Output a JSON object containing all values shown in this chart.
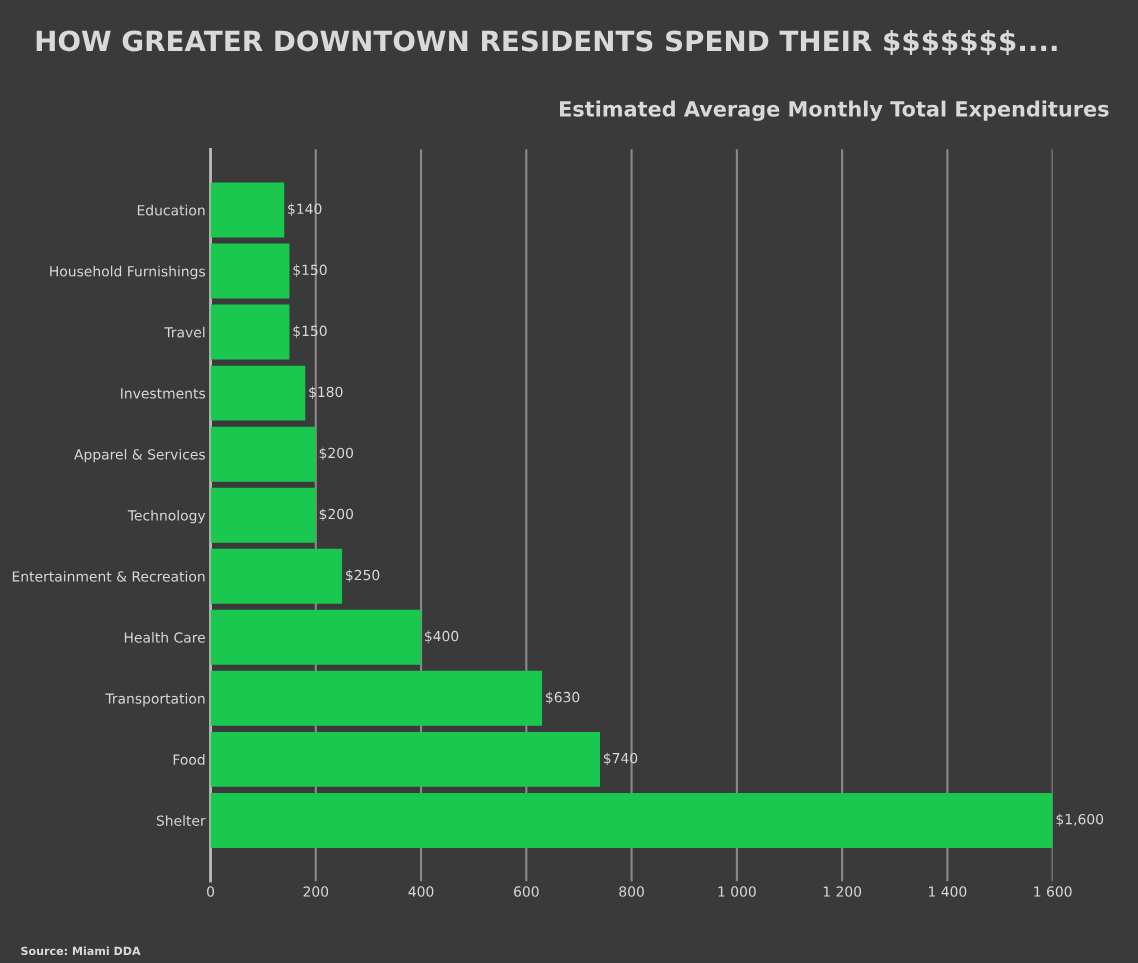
{
  "chart_data": {
    "type": "bar",
    "orientation": "horizontal",
    "title": "HOW GREATER DOWNTOWN RESIDENTS SPEND THEIR $$$$$$$....",
    "subtitle": "Estimated Average Monthly Total Expenditures",
    "categories": [
      "Education",
      "Household Furnishings",
      "Travel",
      "Investments",
      "Apparel & Services",
      "Technology",
      "Entertainment & Recreation",
      "Health Care",
      "Transportation",
      "Food",
      "Shelter"
    ],
    "values": [
      140,
      150,
      150,
      180,
      200,
      200,
      250,
      400,
      630,
      740,
      1600
    ],
    "value_labels": [
      "$140",
      "$150",
      "$150",
      "$180",
      "$200",
      "$200",
      "$250",
      "$400",
      "$630",
      "$740",
      "$1,600"
    ],
    "color": "#1bc84f",
    "xlim": [
      0,
      1600
    ],
    "xticks": [
      0,
      200,
      400,
      600,
      800,
      {
        "value": 1000,
        "label": "1 000"
      },
      {
        "value": 1200,
        "label": "1 200"
      },
      {
        "value": 1400,
        "label": "1 400"
      },
      {
        "value": 1600,
        "label": "1 600"
      }
    ],
    "grid": "x",
    "legend": false,
    "annotations": [
      "Source: Miami DDA"
    ]
  }
}
